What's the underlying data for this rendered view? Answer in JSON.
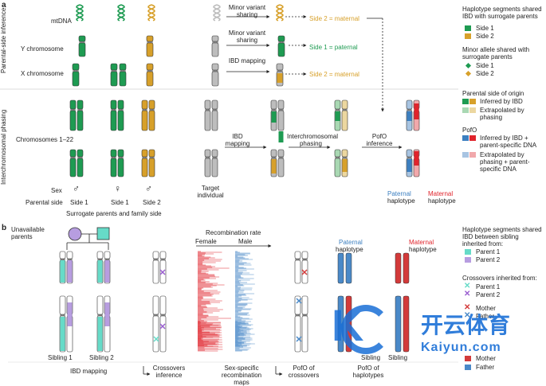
{
  "colors": {
    "side1": "#1e9b52",
    "side1_light": "#a9d8b3",
    "side2": "#d7a02a",
    "side2_light": "#ecd7a0",
    "grey": "#bdbdbd",
    "paternal": "#3c7fc0",
    "paternal_light": "#a8c4e2",
    "maternal": "#e0242c",
    "maternal_light": "#f1a8ab",
    "parent1": "#66dbc8",
    "parent2": "#b79de0",
    "mother": "#d33a3a",
    "father": "#4a89c8"
  },
  "panel_a": {
    "label": "a",
    "side_labels": {
      "top": "Parental-side inference",
      "bottom": "Interchromosomal phasing"
    },
    "row_labels": {
      "mtdna": "mtDNA",
      "y": "Y chromosome",
      "x": "X chromosome",
      "auto": "Chromosomes 1–22",
      "sex": "Sex",
      "parental_side": "Parental side"
    },
    "columns": [
      {
        "label": "Side 1",
        "sex": "♂"
      },
      {
        "label": "Side 1",
        "sex": "♀"
      },
      {
        "label": "Side 2",
        "sex": "♂"
      }
    ],
    "surrogate_caption": "Surrogate parents and family side",
    "target_caption": "Target individual",
    "arrows": {
      "mt": "Minor variant sharing",
      "y": "Minor variant sharing",
      "x": "IBD mapping",
      "auto1": "IBD mapping",
      "auto2": "Interchromosomal phasing",
      "auto3": "PofO inference"
    },
    "results": {
      "mt": "Side 2 = maternal",
      "y": "Side 1 = paternal",
      "x": "Side 2 = maternal"
    },
    "haplotypes": {
      "paternal": "Paternal",
      "maternal": "Maternal",
      "haplotype": "haplotype"
    },
    "legend": {
      "ibd_title": "Haplotype segments shared IBD with surrogate parents",
      "ibd_items": [
        "Side 1",
        "Side 2"
      ],
      "minor_title": "Minor allele shared with surrogate parents",
      "minor_items": [
        "Side 1",
        "Side 2"
      ],
      "origin_title": "Parental side of origin",
      "origin_items": [
        "Inferred by IBD",
        "Extrapolated by phasing"
      ],
      "pofo_title": "PofO",
      "pofo_items": [
        "Inferred by IBD + parent-specific DNA",
        "Extrapolated by phasing + parent-specific DNA"
      ]
    }
  },
  "panel_b": {
    "label": "b",
    "unavailable": "Unavailable parents",
    "recomb_title": "Recombination rate",
    "female": "Female",
    "male": "Male",
    "haplotypes": {
      "paternal": "Paternal",
      "maternal": "Maternal",
      "haplotype": "haplotype"
    },
    "siblings": [
      "Sibling 1",
      "Sibling 2"
    ],
    "sib_bottom": [
      "Sibling",
      "Sibling"
    ],
    "steps": [
      "IBD mapping",
      "Crossovers inference",
      "Sex-specific recombination maps",
      "PofO of crossovers",
      "PofO of haplotypes"
    ],
    "legend": {
      "ibd_title": "Haplotype segments shared IBD between sibling inherited from:",
      "ibd_items": [
        "Parent 1",
        "Parent 2"
      ],
      "cross_title": "Crossovers inherited from:",
      "cross_items": [
        "Parent 1",
        "Parent 2"
      ],
      "cross_items2": [
        "Mother",
        "Father"
      ],
      "pofo_items": [
        "Mother",
        "Father"
      ]
    }
  },
  "watermark": {
    "text": "开云体育",
    "sub": "Kaiyun.com"
  }
}
